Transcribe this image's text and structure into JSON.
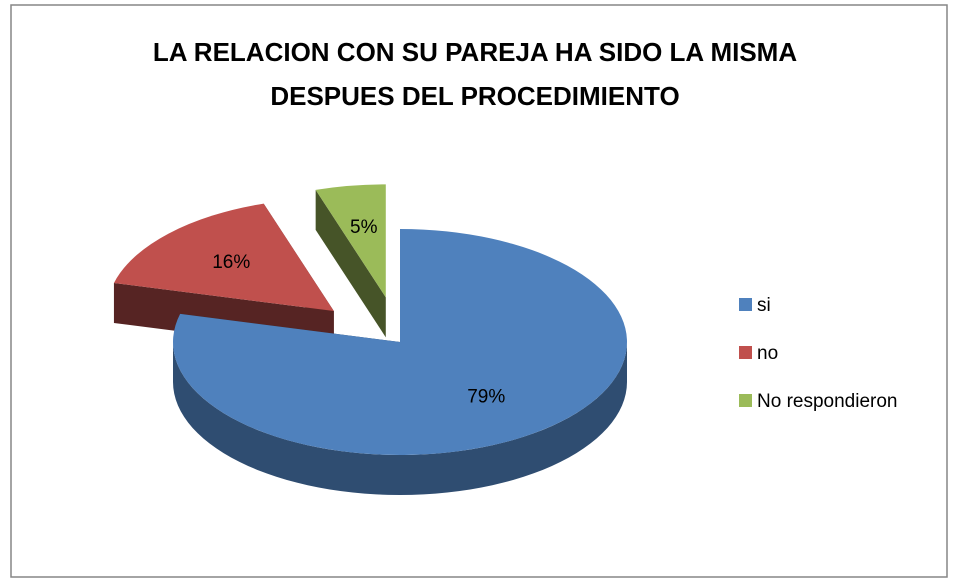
{
  "chart_data": {
    "type": "pie3d",
    "title": "LA RELACION CON SU PAREJA HA SIDO LA MISMA DESPUES DEL PROCEDIMIENTO",
    "categories": [
      "si",
      "no",
      "No respondieron"
    ],
    "values": [
      79,
      16,
      5
    ],
    "value_labels": [
      "79%",
      "16%",
      "5%"
    ],
    "colors": [
      "#4f81bd",
      "#c0504d",
      "#9bbb59"
    ],
    "legend": "right"
  }
}
